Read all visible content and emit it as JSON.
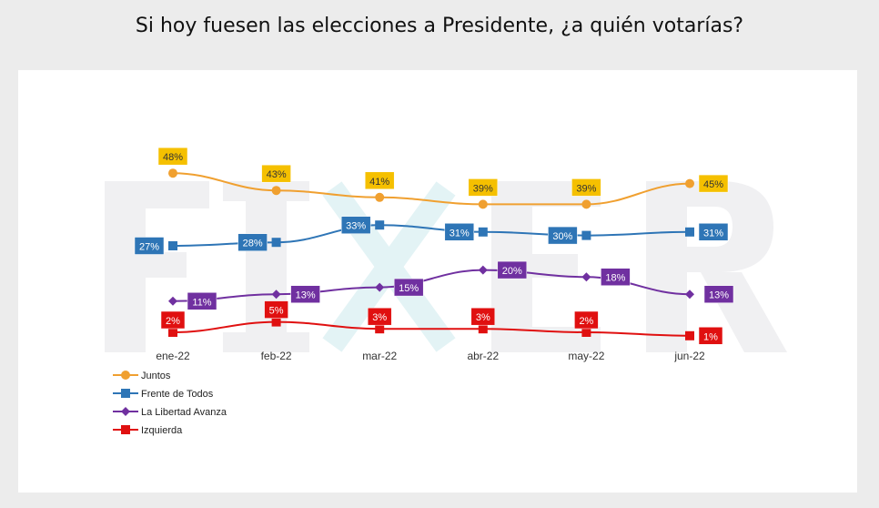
{
  "watermark": "FIXER",
  "chart_data": {
    "type": "line",
    "title": "Si hoy fuesen las elecciones a Presidente, ¿a quién votarías?",
    "categories": [
      "ene-22",
      "feb-22",
      "mar-22",
      "abr-22",
      "may-22",
      "jun-22"
    ],
    "legend_position": "bottom-left",
    "grid": false,
    "series": [
      {
        "name": "Juntos",
        "color": "#f0a030",
        "label_bg": "#f5c000",
        "marker": "circle",
        "values": [
          48,
          43,
          41,
          39,
          39,
          45
        ]
      },
      {
        "name": "Frente de Todos",
        "color": "#2e75b6",
        "label_bg": "#2e75b6",
        "marker": "square",
        "values": [
          27,
          28,
          33,
          31,
          30,
          31
        ]
      },
      {
        "name": "La Libertad Avanza",
        "color": "#7030a0",
        "label_bg": "#7030a0",
        "marker": "diamond",
        "values": [
          11,
          13,
          15,
          20,
          18,
          13
        ]
      },
      {
        "name": "Izquierda",
        "color": "#e01010",
        "label_bg": "#e01010",
        "marker": "square",
        "values": [
          2,
          5,
          3,
          3,
          2,
          1
        ]
      }
    ]
  }
}
